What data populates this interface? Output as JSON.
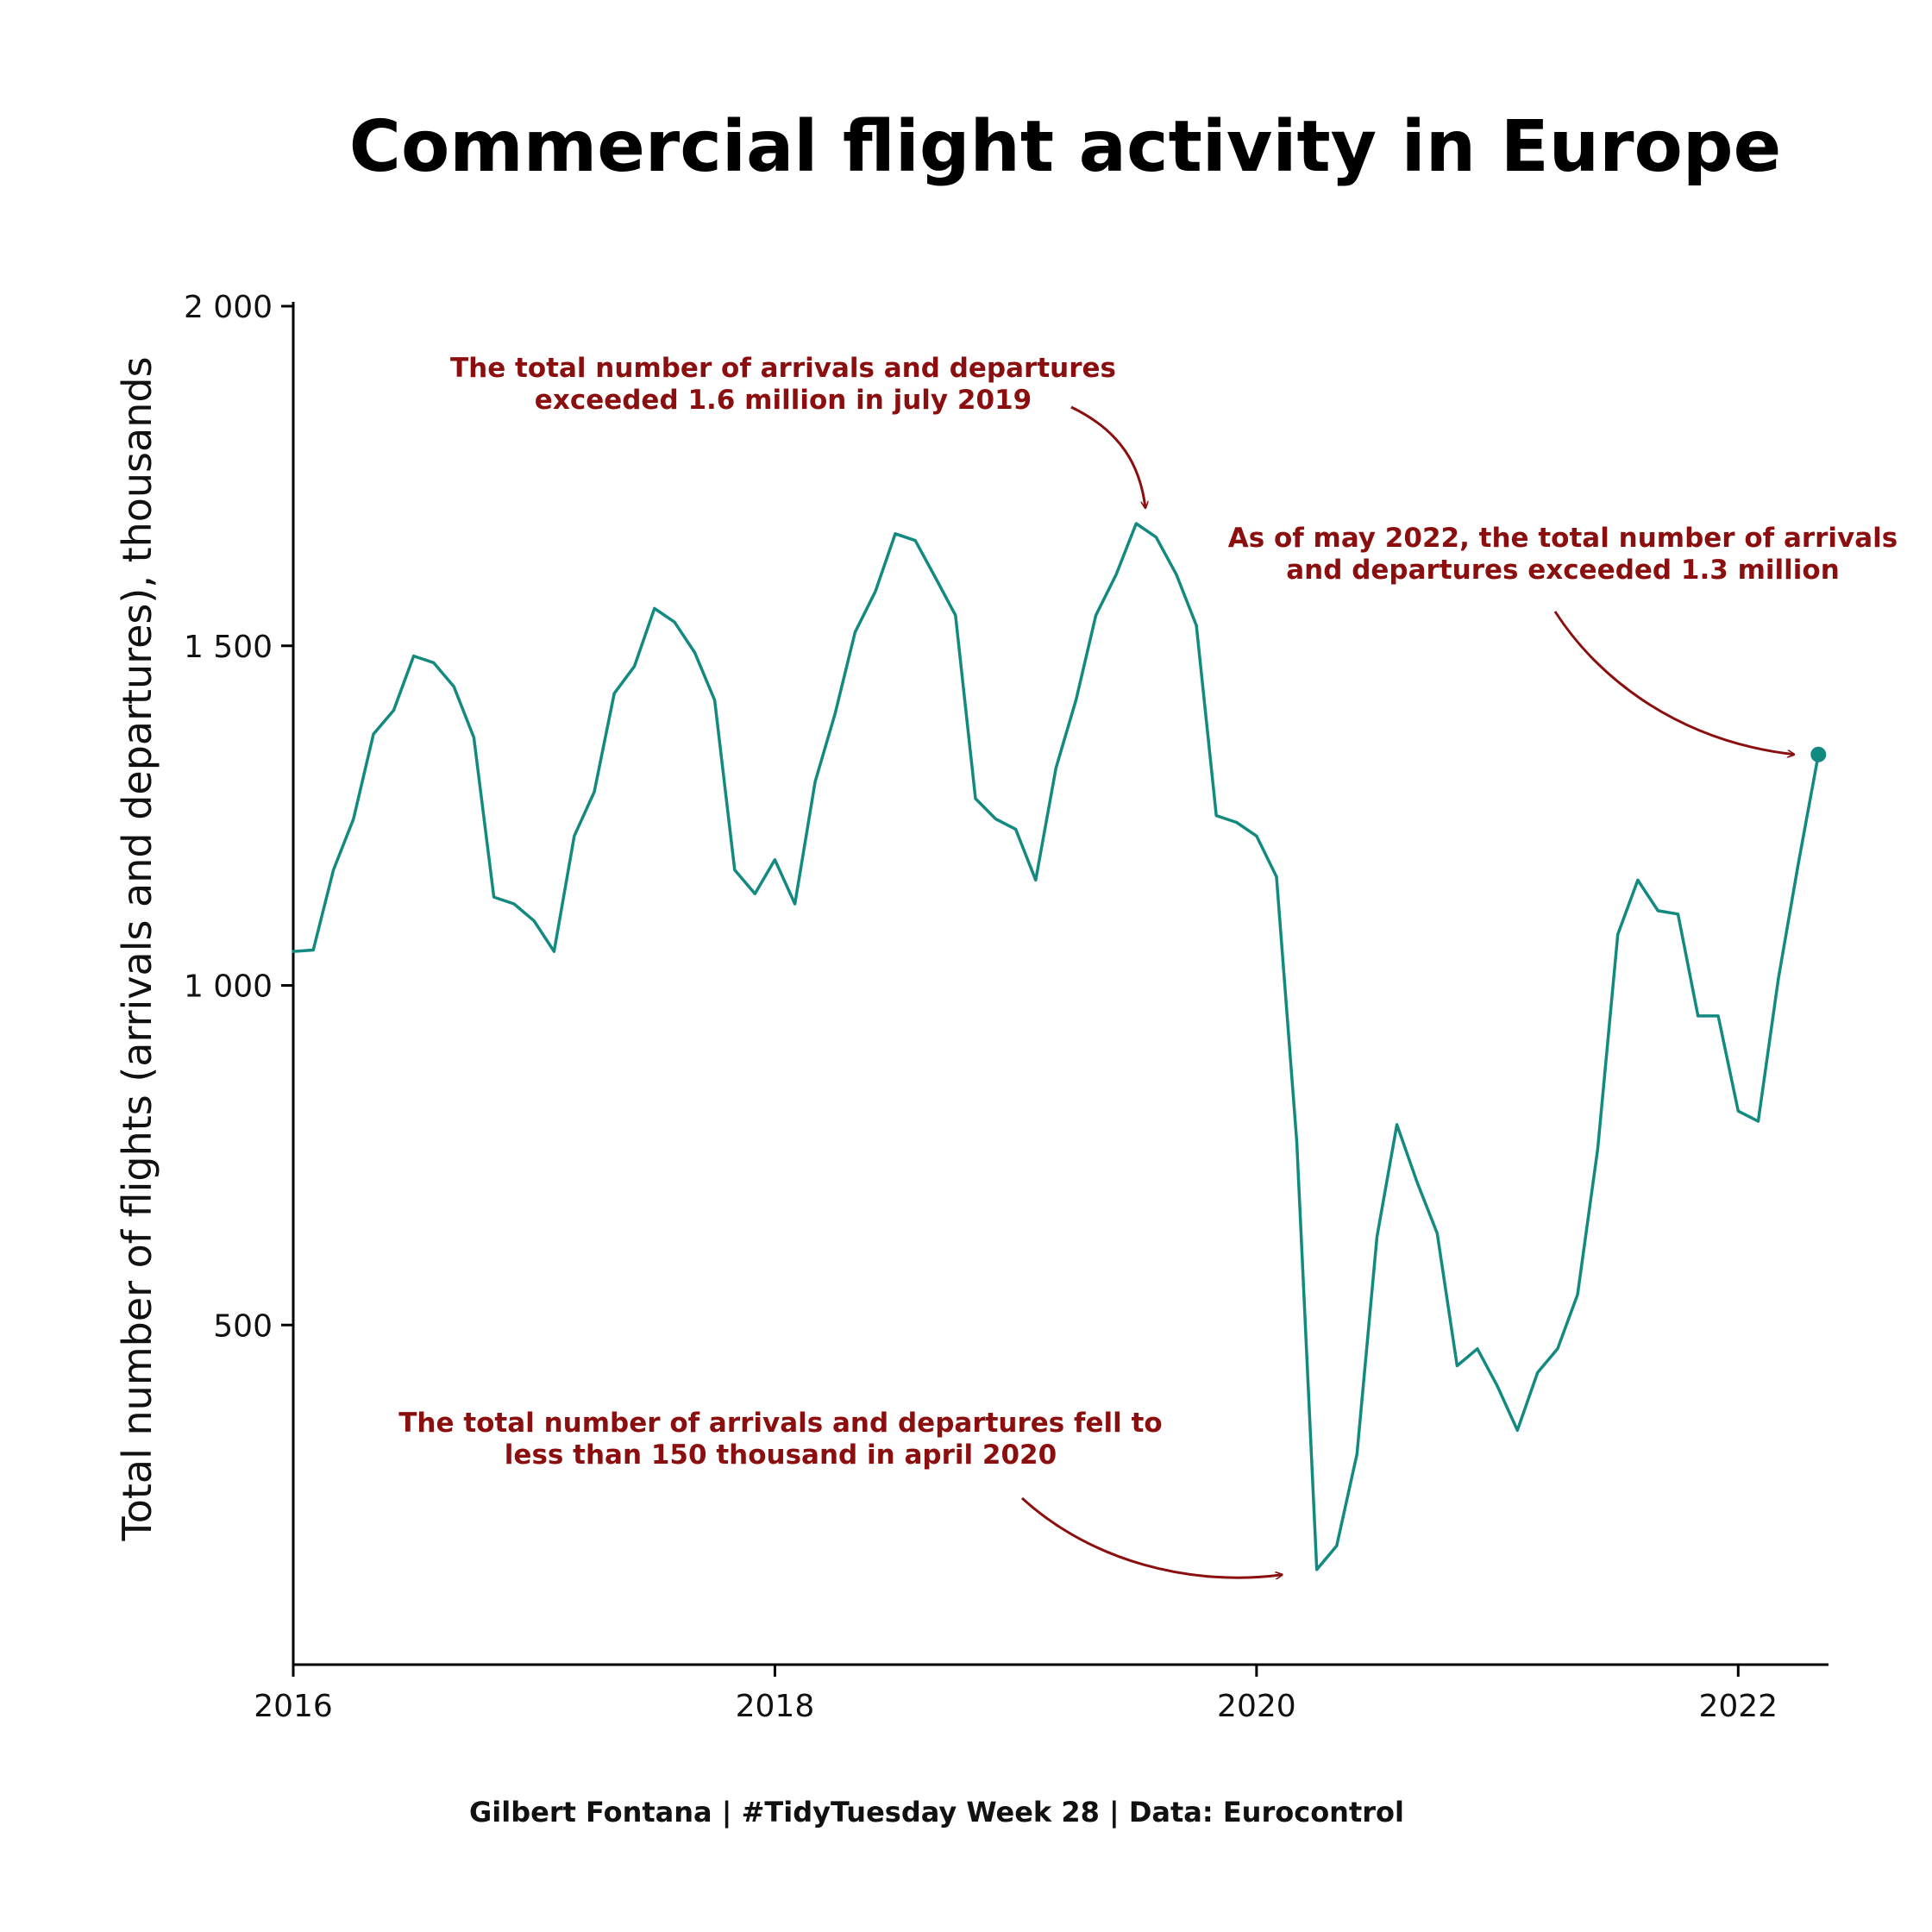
{
  "chart_data": {
    "type": "line",
    "title": "Commercial flight activity in Europe",
    "xlabel": "",
    "ylabel": "Total number of flights (arrivals and departures), thousands",
    "caption": "Gilbert Fontana | #TidyTuesday Week 28 | Data: Eurocontrol",
    "xlim": [
      2016.0,
      2022.375
    ],
    "ylim": [
      0,
      2000
    ],
    "x_ticks": [
      2016,
      2018,
      2020,
      2022
    ],
    "x_tick_labels": [
      "2016",
      "2018",
      "2020",
      "2022"
    ],
    "y_ticks": [
      500,
      1000,
      1500,
      2000
    ],
    "y_tick_labels": [
      "500",
      "1 000",
      "1 500",
      "2 000"
    ],
    "grid": false,
    "colors": {
      "line": "#138a80",
      "annotation": "#8b0f0f",
      "text": "#111111"
    },
    "series": [
      {
        "x": [
          2016.0,
          2016.083,
          2016.167,
          2016.25,
          2016.333,
          2016.417,
          2016.5,
          2016.583,
          2016.667,
          2016.75,
          2016.833,
          2016.917,
          2017.0,
          2017.083,
          2017.167,
          2017.25,
          2017.333,
          2017.417,
          2017.5,
          2017.583,
          2017.667,
          2017.75,
          2017.833,
          2017.917,
          2018.0,
          2018.083,
          2018.167,
          2018.25,
          2018.333,
          2018.417,
          2018.5,
          2018.583,
          2018.667,
          2018.75,
          2018.833,
          2018.917,
          2019.0,
          2019.083,
          2019.167,
          2019.25,
          2019.333,
          2019.417,
          2019.5,
          2019.583,
          2019.667,
          2019.75,
          2019.833,
          2019.917,
          2020.0,
          2020.083,
          2020.167,
          2020.25,
          2020.333,
          2020.417,
          2020.5,
          2020.583,
          2020.667,
          2020.75,
          2020.833,
          2020.917,
          2021.0,
          2021.083,
          2021.167,
          2021.25,
          2021.333,
          2021.417,
          2021.5,
          2021.583,
          2021.667,
          2021.75,
          2021.833,
          2021.917,
          2022.0,
          2022.083,
          2022.167,
          2022.25,
          2022.333
        ],
        "values": [
          1050,
          1052,
          1170,
          1245,
          1370,
          1405,
          1485,
          1475,
          1440,
          1365,
          1130,
          1120,
          1095,
          1050,
          1220,
          1285,
          1430,
          1470,
          1555,
          1535,
          1490,
          1420,
          1170,
          1135,
          1185,
          1120,
          1300,
          1400,
          1520,
          1580,
          1665,
          1655,
          1600,
          1545,
          1275,
          1245,
          1230,
          1155,
          1320,
          1420,
          1545,
          1605,
          1680,
          1660,
          1605,
          1530,
          1250,
          1240,
          1220,
          1160,
          770,
          140,
          175,
          310,
          630,
          795,
          710,
          635,
          440,
          465,
          410,
          345,
          430,
          465,
          545,
          760,
          1075,
          1155,
          1110,
          1105,
          955,
          955,
          815,
          800,
          1010,
          1180,
          1340
        ]
      }
    ],
    "endpoint_marker": {
      "x": 2022.333,
      "y": 1340
    },
    "annotations": [
      {
        "lines": [
          "The total number of arrivals and departures",
          "exceeded 1.6 million in july 2019"
        ],
        "target": {
          "x": 2019.5,
          "y": 1680
        }
      },
      {
        "lines": [
          "As of may 2022, the total number of arrivals",
          "and departures exceeded 1.3 million"
        ],
        "target": {
          "x": 2022.333,
          "y": 1340
        }
      },
      {
        "lines": [
          "The total number of arrivals and departures fell to",
          "less than 150 thousand in april 2020"
        ],
        "target": {
          "x": 2020.25,
          "y": 140
        }
      }
    ]
  }
}
